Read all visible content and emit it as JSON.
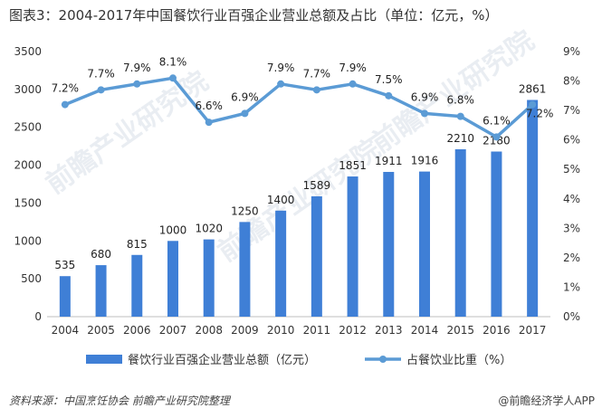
{
  "title": "图表3：2004-2017年中国餐饮行业百强企业营业总额及占比（单位：亿元，%）",
  "source": "资料来源：中国烹饪协会 前瞻产业研究院整理",
  "brand": "@前瞻经济学人APP",
  "watermark": "前瞻产业研究院",
  "colors": {
    "bar": "#3f7fd6",
    "line": "#5b9bd5",
    "text": "#333333"
  },
  "chart_data": {
    "type": "bar+line",
    "title": "2004-2017年中国餐饮行业百强企业营业总额及占比",
    "categories": [
      "2004",
      "2005",
      "2006",
      "2007",
      "2008",
      "2009",
      "2010",
      "2011",
      "2012",
      "2013",
      "2014",
      "2015",
      "2016",
      "2017"
    ],
    "series": [
      {
        "name": "餐饮行业百强企业营业总额（亿元）",
        "type": "bar",
        "axis": "left",
        "values": [
          535,
          680,
          815,
          1000,
          1020,
          1250,
          1400,
          1589,
          1851,
          1911,
          1916,
          2210,
          2180,
          2861
        ]
      },
      {
        "name": "占餐饮业比重（%）",
        "type": "line",
        "axis": "right",
        "values": [
          7.2,
          7.7,
          7.9,
          8.1,
          6.6,
          6.9,
          7.9,
          7.7,
          7.9,
          7.5,
          6.9,
          6.8,
          6.1,
          7.2
        ]
      }
    ],
    "ylim_left": [
      0,
      3500
    ],
    "yticks_left": [
      0,
      500,
      1000,
      1500,
      2000,
      2500,
      3000,
      3500
    ],
    "ylim_right": [
      0,
      9
    ],
    "yticks_right": [
      "0%",
      "1%",
      "2%",
      "3%",
      "4%",
      "5%",
      "6%",
      "7%",
      "8%",
      "9%"
    ],
    "legend": "bottom"
  }
}
